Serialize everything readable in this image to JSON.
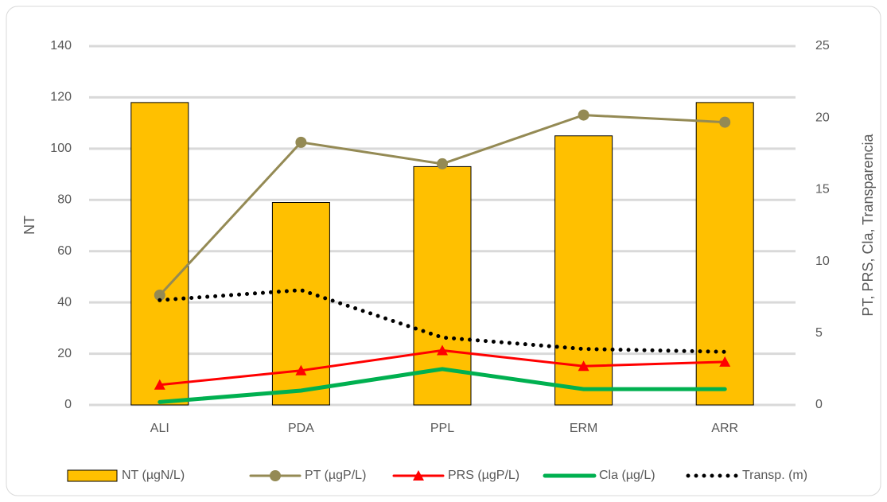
{
  "chart_data": {
    "type": "bar",
    "categories": [
      "ALI",
      "PDA",
      "PPL",
      "ERM",
      "ARR"
    ],
    "y_label": "NT",
    "y2_label": "PT, PRS, Cla, Transparencia",
    "ylim": [
      0,
      140
    ],
    "yticks": [
      0,
      20,
      40,
      60,
      80,
      100,
      120,
      140
    ],
    "y2lim": [
      0,
      25
    ],
    "y2ticks": [
      0,
      5,
      10,
      15,
      20,
      25
    ],
    "grid": true,
    "legend": "bottom",
    "series": [
      {
        "name": "NT (µgN/L)",
        "type": "bar",
        "color": "#ffc000",
        "values": [
          118,
          79,
          93,
          105,
          118
        ]
      },
      {
        "name": "PT (µgP/L)",
        "type": "line",
        "marker": "circle",
        "color": "#948a54",
        "axis": "y2",
        "values": [
          7.65,
          18.3,
          16.8,
          20.2,
          19.7
        ]
      },
      {
        "name": "PRS (µgP/L)",
        "type": "line",
        "marker": "triangle",
        "color": "#ff0000",
        "axis": "y2",
        "values": [
          1.4,
          2.4,
          3.8,
          2.7,
          3.0
        ]
      },
      {
        "name": "Cla (µg/L)",
        "type": "line",
        "color": "#00b050",
        "axis": "y2",
        "values": [
          0.2,
          1.0,
          2.5,
          1.1,
          1.1
        ]
      },
      {
        "name": "Transp. (m)",
        "type": "line",
        "dash": "dotted",
        "color": "#000000",
        "axis": "y2",
        "values": [
          7.3,
          8.0,
          4.7,
          3.9,
          3.7
        ]
      }
    ]
  }
}
